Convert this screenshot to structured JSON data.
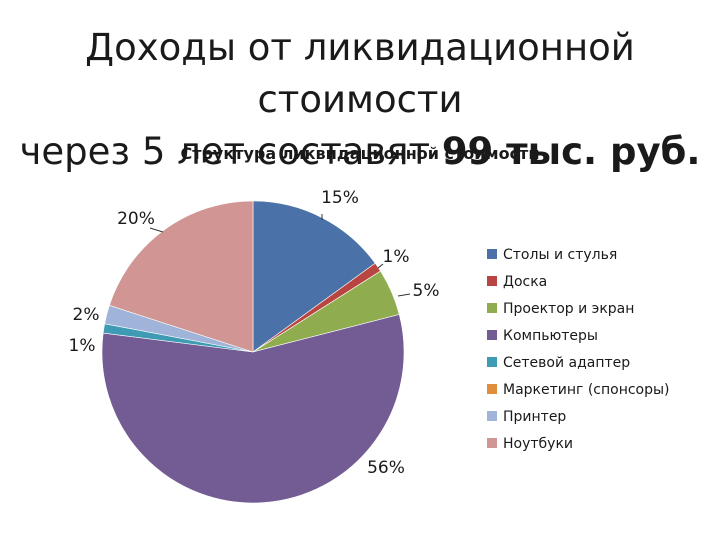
{
  "slide": {
    "title_line1": "Доходы от ликвидационной стоимости",
    "title_line2_prefix": "через 5 лет составят ",
    "title_line2_bold": "99 тыс. руб."
  },
  "chart_data": {
    "type": "pie",
    "title": "Структура ликвидационной стоимости",
    "legend_placement": "right",
    "slices": [
      {
        "name": "Столы и стулья",
        "value": 15,
        "label": "15%",
        "color": "#4a72a8"
      },
      {
        "name": "Доска",
        "value": 1,
        "label": "1%",
        "color": "#b84541"
      },
      {
        "name": "Проектор и экран",
        "value": 5,
        "label": "5%",
        "color": "#8fad4f"
      },
      {
        "name": "Компьютеры",
        "value": 56,
        "label": "56%",
        "color": "#735b94"
      },
      {
        "name": "Сетевой адаптер",
        "value": 1,
        "label": "1%",
        "color": "#3e9bb3"
      },
      {
        "name": "Маркетинг (спонсоры)",
        "value": 0,
        "label": "",
        "color": "#e18e3c"
      },
      {
        "name": "Принтер",
        "value": 2,
        "label": "2%",
        "color": "#9fb4d8"
      },
      {
        "name": "Ноутбуки",
        "value": 20,
        "label": "20%",
        "color": "#d19693"
      }
    ]
  }
}
